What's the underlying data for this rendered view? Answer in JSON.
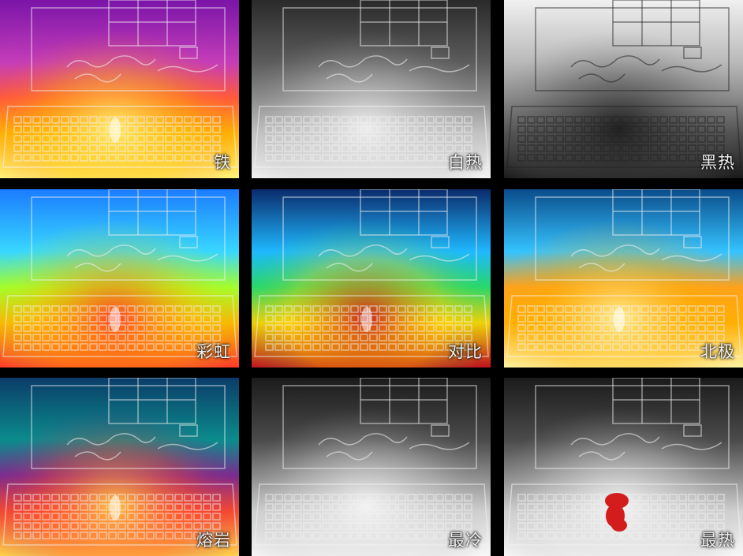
{
  "palettes": [
    {
      "id": "iron",
      "label": "铁",
      "colors": [
        "#7a14a8",
        "#c43db8",
        "#ff5a3c",
        "#ffb800",
        "#fff27a"
      ]
    },
    {
      "id": "white-hot",
      "label": "白热",
      "colors": [
        "#2a2a2a",
        "#5c5c5c",
        "#8a8a8a",
        "#c8c8c8",
        "#f2f2f2"
      ]
    },
    {
      "id": "black-hot",
      "label": "黑热",
      "colors": [
        "#f0f0f0",
        "#b9b9b9",
        "#8a8a8a",
        "#4d4d4d",
        "#1b1b1b"
      ]
    },
    {
      "id": "rainbow",
      "label": "彩虹",
      "colors": [
        "#1b7cff",
        "#38d7ff",
        "#a3ff2b",
        "#ffb300",
        "#ff3a2a"
      ]
    },
    {
      "id": "contrast",
      "label": "对比",
      "colors": [
        "#0a2b6b",
        "#1fb8ff",
        "#26d86b",
        "#ffd000",
        "#c1121f"
      ]
    },
    {
      "id": "arctic",
      "label": "北极",
      "colors": [
        "#0a4c8a",
        "#34c3ff",
        "#ffa11a",
        "#ffb000",
        "#fff3a2"
      ]
    },
    {
      "id": "lava",
      "label": "熔岩",
      "colors": [
        "#0b3c69",
        "#0b8c8c",
        "#7b2b8f",
        "#ff4a2a",
        "#ffd04a"
      ]
    },
    {
      "id": "coldest",
      "label": "最冷",
      "colors": [
        "#1b1b1b",
        "#4b4b4b",
        "#8a8a8a",
        "#d5d5d5",
        "#f7f7f7"
      ]
    },
    {
      "id": "hottest",
      "label": "最热",
      "colors": [
        "#1b1b1b",
        "#4b4b4b",
        "#8a8a8a",
        "#d5d5d5",
        "#f7f7f7"
      ],
      "highlight": "#d31d1d"
    }
  ]
}
